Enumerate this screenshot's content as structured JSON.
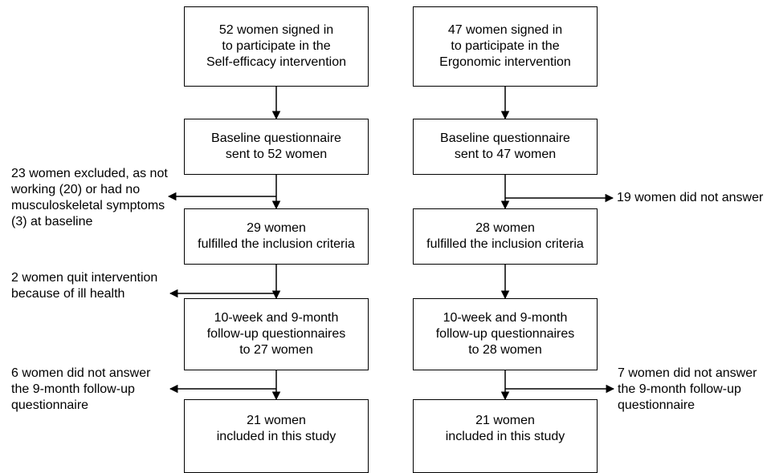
{
  "left_column": {
    "box1": [
      "52 women signed in",
      "to participate in the",
      "Self-efficacy intervention"
    ],
    "box2": [
      "Baseline questionnaire",
      "sent to 52 women"
    ],
    "box3": [
      "29 women",
      "fulfilled the inclusion criteria"
    ],
    "box4": [
      "10-week and 9-month",
      "follow-up questionnaires",
      "to 27 women"
    ],
    "box5": [
      "21 women",
      "included in this study"
    ]
  },
  "right_column": {
    "box1": [
      "47 women signed in",
      "to participate in the",
      "Ergonomic intervention"
    ],
    "box2": [
      "Baseline questionnaire",
      "sent to 47 women"
    ],
    "box3": [
      "28 women",
      "fulfilled the inclusion criteria"
    ],
    "box4": [
      "10-week and 9-month",
      "follow-up questionnaires",
      "to 28 women"
    ],
    "box5": [
      "21 women",
      "included in this study"
    ]
  },
  "left_exclusions": {
    "excl1": [
      "23 women excluded, as not",
      "working (20) or had no",
      "musculoskeletal symptoms",
      "(3) at baseline"
    ],
    "excl2": [
      "2 women quit intervention",
      "because of ill health"
    ],
    "excl3": [
      "6 women did not answer",
      "the 9-month follow-up",
      "questionnaire"
    ]
  },
  "right_exclusions": {
    "excl1": [
      "19 women did not answer"
    ],
    "excl2": [
      "7 women did not answer",
      "the 9-month follow-up",
      "questionnaire"
    ]
  }
}
